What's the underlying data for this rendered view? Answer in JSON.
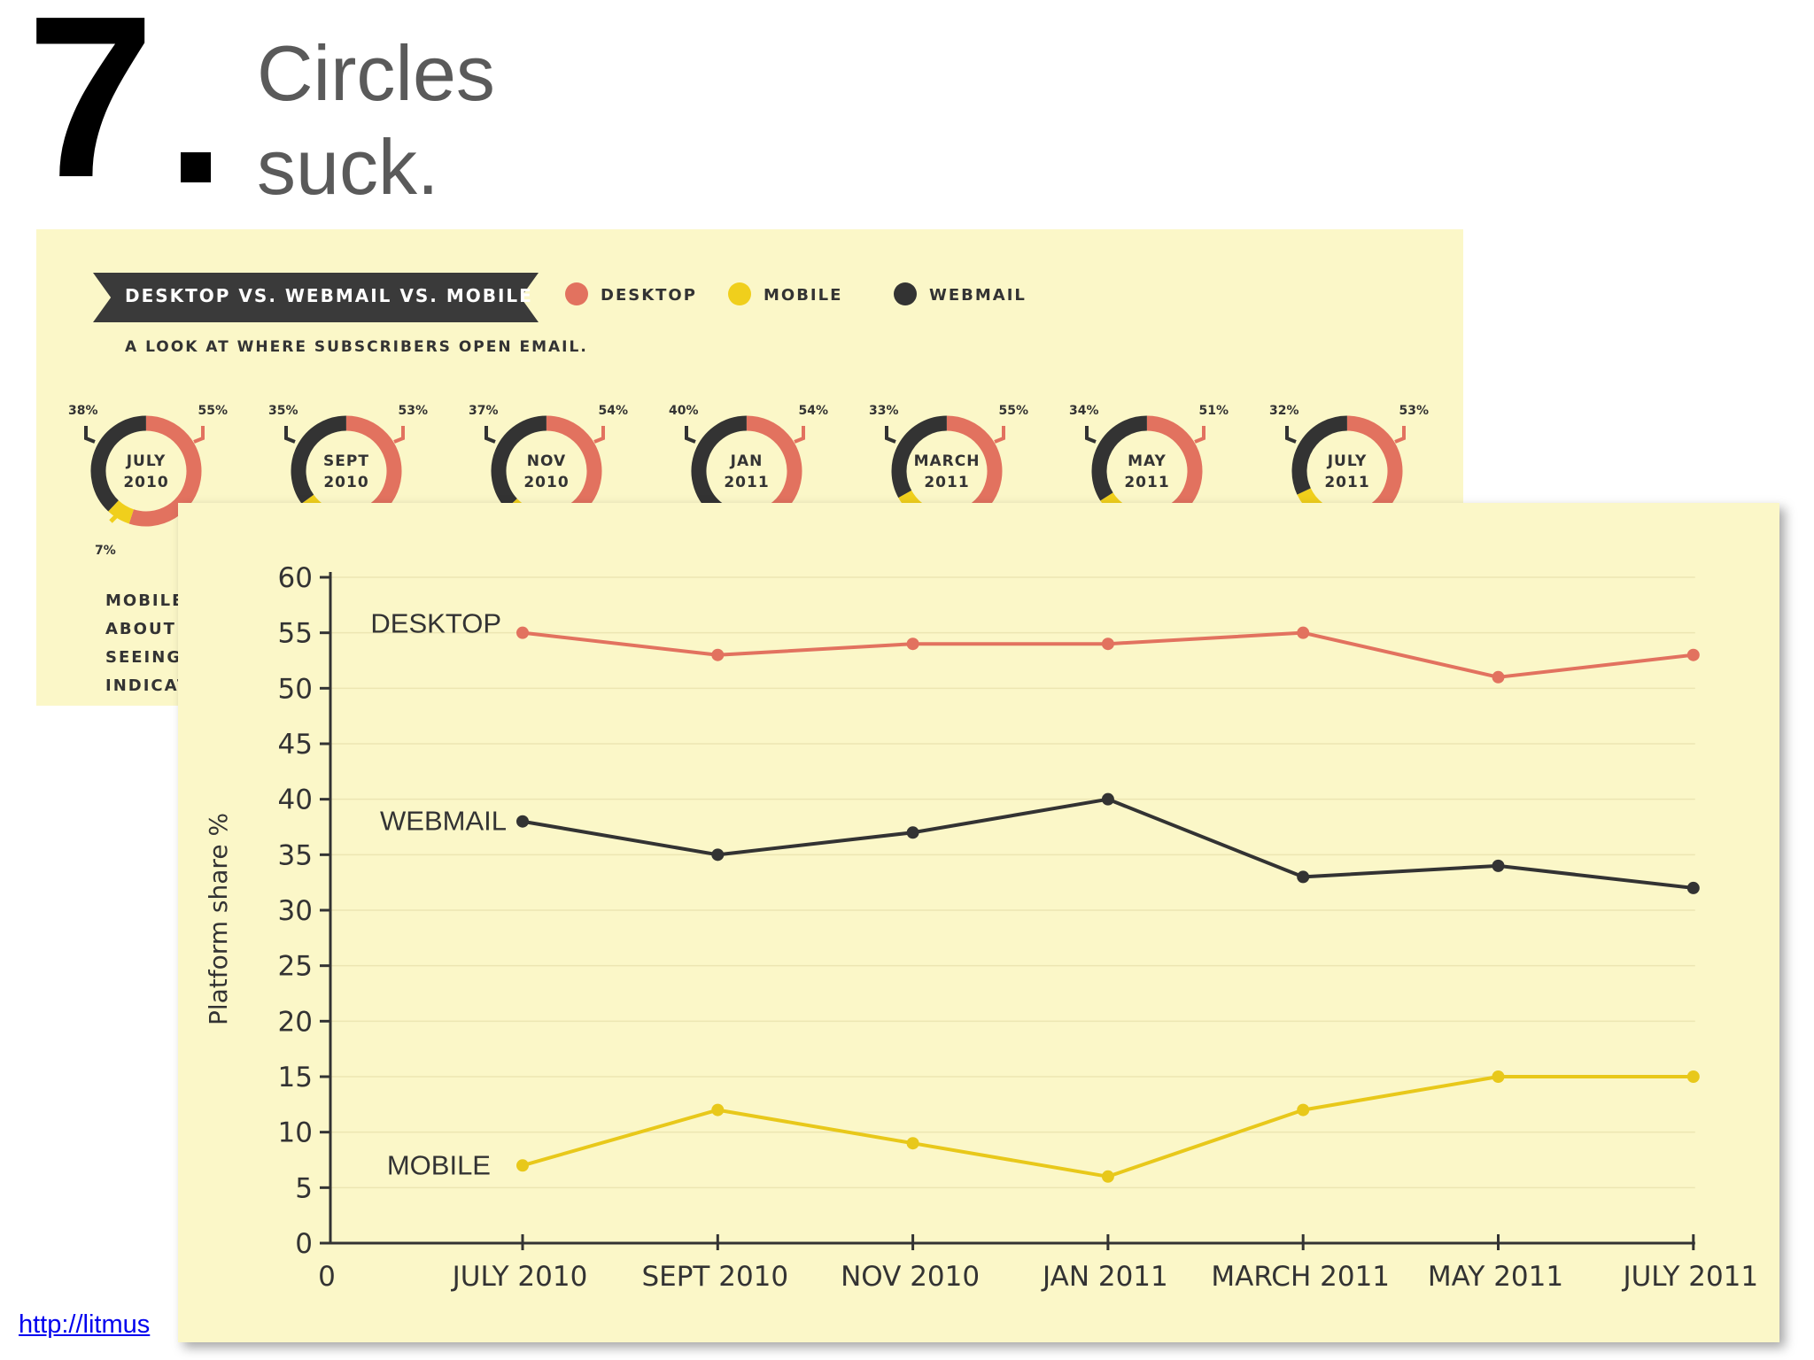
{
  "slide": {
    "number": "7",
    "title_line1": "Circles",
    "title_line2": "suck."
  },
  "infographic": {
    "banner": "DESKTOP VS. WEBMAIL VS. MOBILE",
    "subtitle": "A LOOK AT WHERE SUBSCRIBERS OPEN EMAIL.",
    "legend": [
      {
        "label": "DESKTOP",
        "color": "#e2725f"
      },
      {
        "label": "MOBILE",
        "color": "#f0cf1c"
      },
      {
        "label": "WEBMAIL",
        "color": "#333333"
      }
    ],
    "donuts": [
      {
        "line1": "JULY",
        "line2": "2010",
        "webmail": "38%",
        "desktop": "55%",
        "mobile": "7%",
        "webmail_v": 38,
        "desktop_v": 55,
        "mobile_v": 7
      },
      {
        "line1": "SEPT",
        "line2": "2010",
        "webmail": "35%",
        "desktop": "53%",
        "mobile": "",
        "webmail_v": 35,
        "desktop_v": 53,
        "mobile_v": 12
      },
      {
        "line1": "NOV",
        "line2": "2010",
        "webmail": "37%",
        "desktop": "54%",
        "mobile": "",
        "webmail_v": 37,
        "desktop_v": 54,
        "mobile_v": 9
      },
      {
        "line1": "JAN",
        "line2": "2011",
        "webmail": "40%",
        "desktop": "54%",
        "mobile": "",
        "webmail_v": 40,
        "desktop_v": 54,
        "mobile_v": 6
      },
      {
        "line1": "MARCH",
        "line2": "2011",
        "webmail": "33%",
        "desktop": "55%",
        "mobile": "",
        "webmail_v": 33,
        "desktop_v": 55,
        "mobile_v": 12
      },
      {
        "line1": "MAY",
        "line2": "2011",
        "webmail": "34%",
        "desktop": "51%",
        "mobile": "",
        "webmail_v": 34,
        "desktop_v": 51,
        "mobile_v": 15
      },
      {
        "line1": "JULY",
        "line2": "2011",
        "webmail": "32%",
        "desktop": "53%",
        "mobile": "",
        "webmail_v": 32,
        "desktop_v": 53,
        "mobile_v": 15
      }
    ],
    "side_text": [
      "MOBILE",
      "ABOUT T",
      "SEEING",
      "INDICAT"
    ]
  },
  "chart_data": {
    "type": "line",
    "title": "",
    "xlabel": "",
    "ylabel": "Platform share %",
    "categories": [
      "JULY 2010",
      "SEPT 2010",
      "NOV 2010",
      "JAN 2011",
      "MARCH 2011",
      "MAY 2011",
      "JULY 2011"
    ],
    "x_origin_label": "0",
    "ylim": [
      0,
      60
    ],
    "yticks": [
      0,
      5,
      10,
      15,
      20,
      25,
      30,
      35,
      40,
      45,
      50,
      55,
      60
    ],
    "grid": true,
    "legend": "inline labels",
    "series": [
      {
        "name": "DESKTOP",
        "color": "#e2725f",
        "values": [
          55,
          53,
          54,
          54,
          55,
          51,
          53
        ]
      },
      {
        "name": "WEBMAIL",
        "color": "#333333",
        "values": [
          38,
          35,
          37,
          40,
          33,
          34,
          32
        ]
      },
      {
        "name": "MOBILE",
        "color": "#e8c81a",
        "values": [
          7,
          12,
          9,
          6,
          12,
          15,
          15
        ]
      }
    ]
  },
  "source": {
    "link_text": "http://litmus"
  }
}
